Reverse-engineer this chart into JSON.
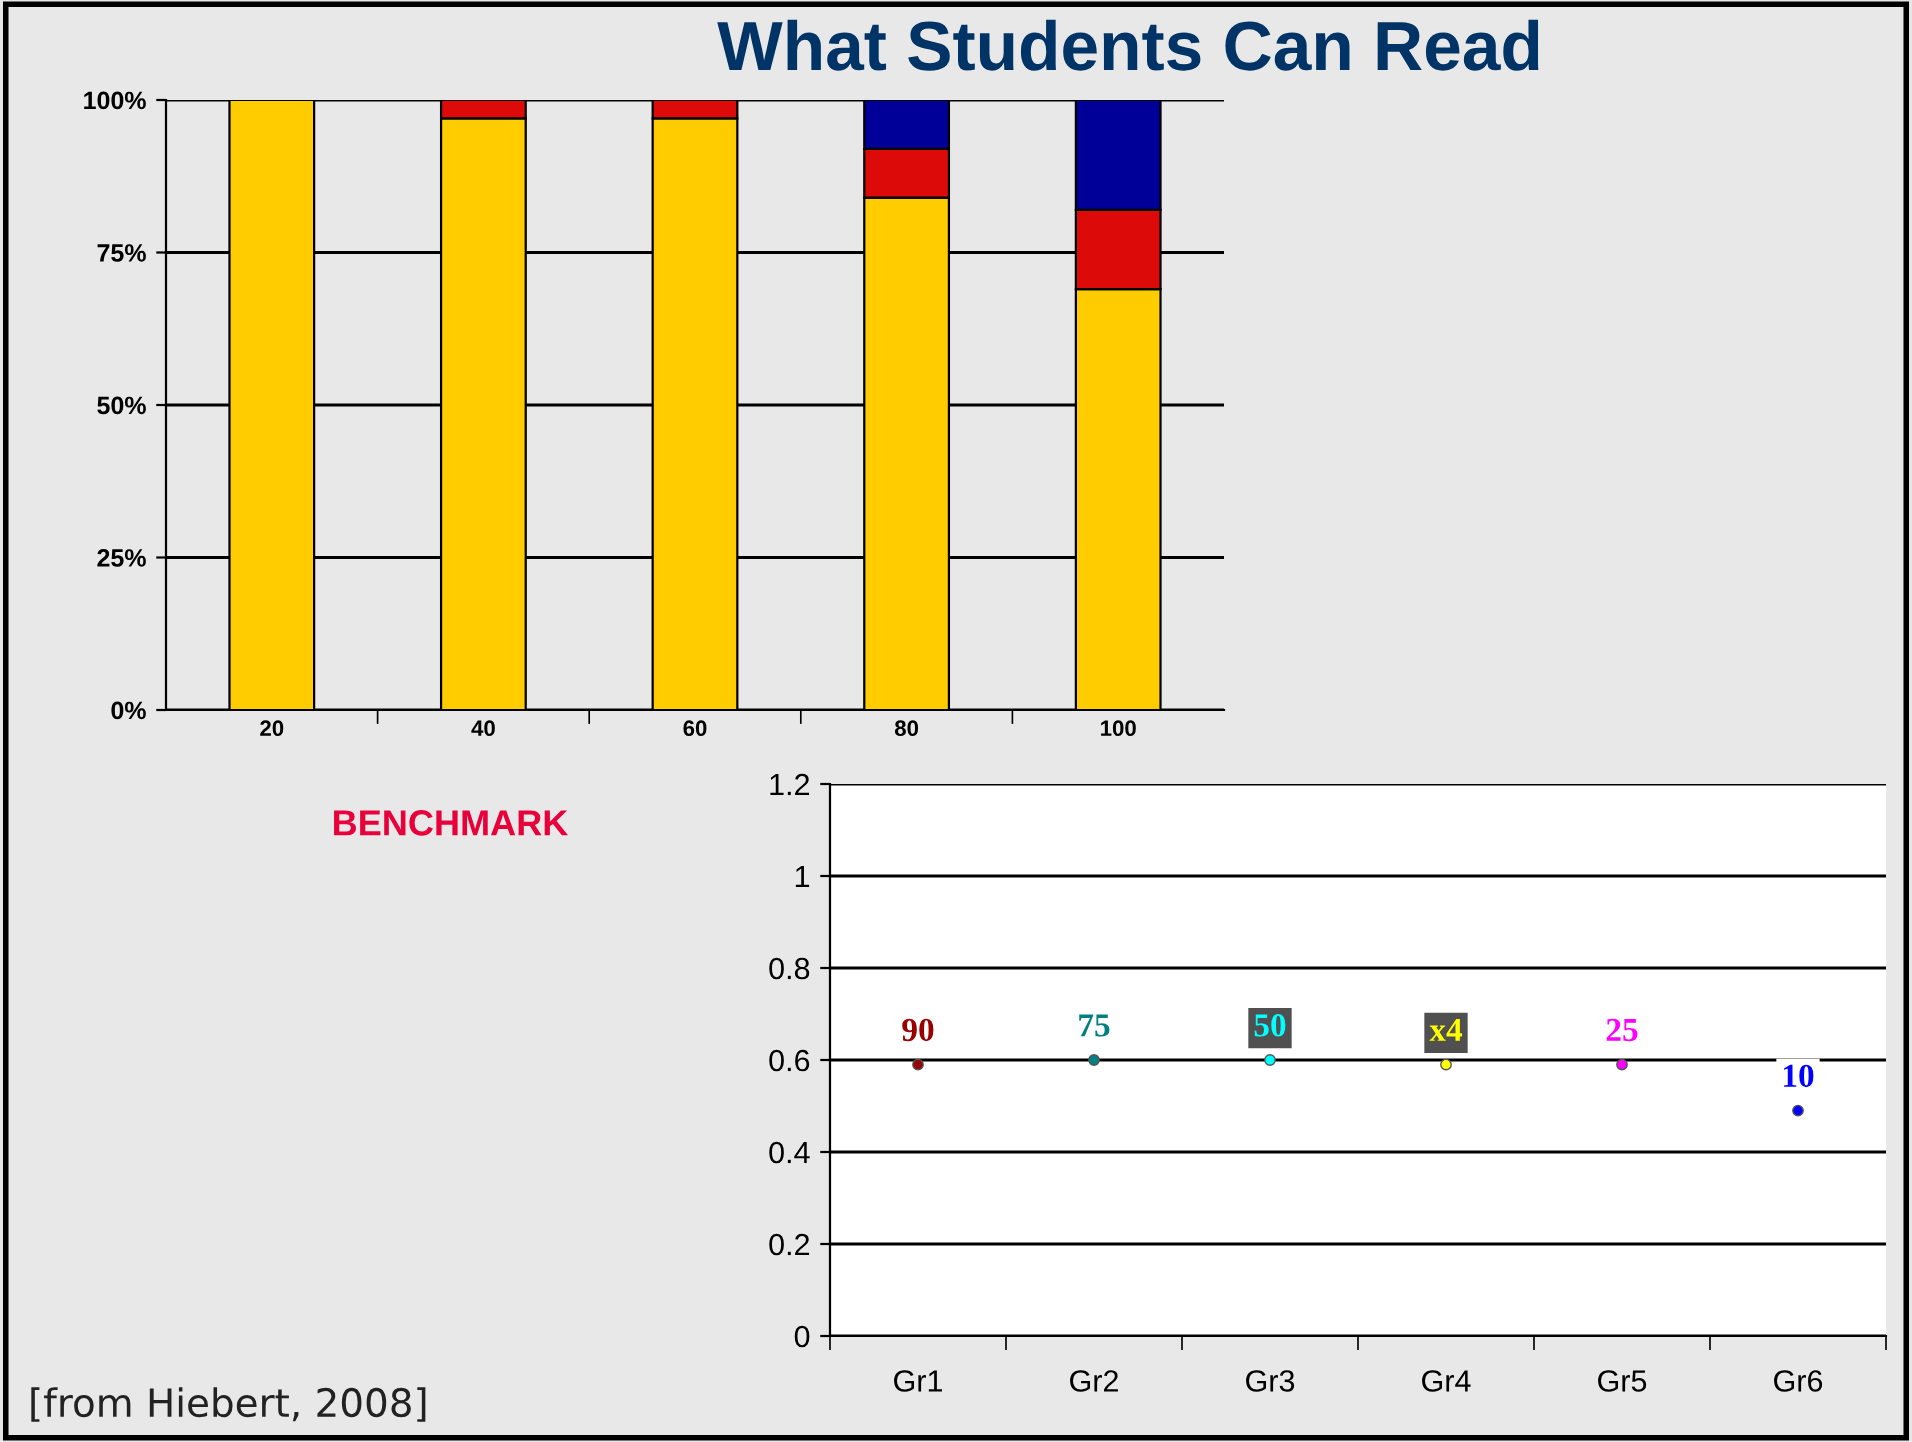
{
  "chart_data": [
    {
      "type": "bar",
      "title": "What Students Can Read",
      "stacked": true,
      "categories": [
        "20",
        "40",
        "60",
        "80",
        "100"
      ],
      "series": [
        {
          "color": "#ffcc00",
          "values": [
            100,
            97,
            97,
            84,
            69
          ]
        },
        {
          "color": "#dd0a0a",
          "values": [
            null,
            3,
            3,
            8,
            13
          ]
        },
        {
          "color": "#000099",
          "values": [
            null,
            null,
            null,
            8,
            18
          ]
        }
      ],
      "ylim": [
        0,
        100
      ],
      "yticks": [
        {
          "value": 0,
          "label": "0%"
        },
        {
          "value": 25,
          "label": "25%"
        },
        {
          "value": 50,
          "label": "50%"
        },
        {
          "value": 75,
          "label": "75%"
        },
        {
          "value": 100,
          "label": "100%"
        }
      ],
      "grid": "y",
      "annotations": [
        "BENCHMARK",
        "[from Hiebert, 2008]"
      ]
    },
    {
      "type": "scatter",
      "categories": [
        "Gr1",
        "Gr2",
        "Gr3",
        "Gr4",
        "Gr5",
        "Gr6"
      ],
      "series": [
        {
          "name": "90",
          "color": "#990000",
          "values": [
            0.59,
            null,
            null,
            null,
            null,
            null
          ]
        },
        {
          "name": "75",
          "color": "#008080",
          "values": [
            null,
            0.6,
            null,
            null,
            null,
            null
          ]
        },
        {
          "name": "50",
          "color": "#00ffff",
          "values": [
            null,
            null,
            0.6,
            null,
            null,
            null
          ]
        },
        {
          "name": "x4",
          "color": "#ffff00",
          "values": [
            null,
            null,
            null,
            0.59,
            null,
            null
          ]
        },
        {
          "name": "25",
          "color": "#ff00ff",
          "values": [
            null,
            null,
            null,
            null,
            0.59,
            null
          ]
        },
        {
          "name": "10",
          "color": "#0000ff",
          "values": [
            null,
            null,
            null,
            null,
            null,
            0.49
          ]
        }
      ],
      "marker": "circle",
      "ylim": [
        0,
        1.2
      ],
      "yticks": [
        0,
        0.2,
        0.4,
        0.6,
        0.8,
        1,
        1.2
      ],
      "grid": "y"
    }
  ]
}
